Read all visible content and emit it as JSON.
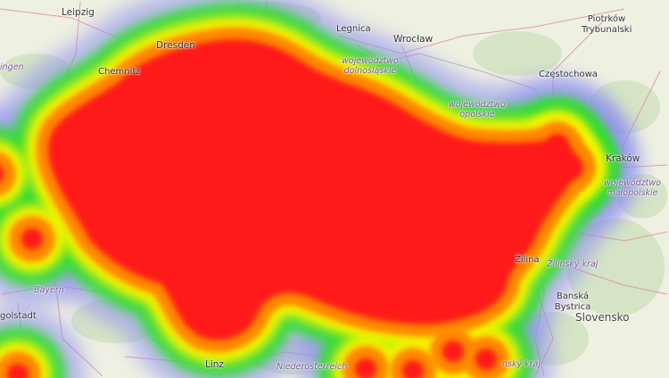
{
  "map": {
    "labels": {
      "leipzig": "Leipzig",
      "dresden": "Dresden",
      "chemnitz": "Chemnitz",
      "ingen": "ingen",
      "legnica": "Legnica",
      "wroclaw": "Wrocław",
      "piotrkow": "Piotrków Trybunalski",
      "czestochowa": "Częstochowa",
      "krakow": "Kraków",
      "dolnoslaskie": "województwo dolnośląskie",
      "opolskie": "województwo opolskie",
      "malopolskie": "województwo małopolskie",
      "zilina": "Žilina",
      "zilinsky": "Žilinský kraj",
      "banska": "Banská Bystrica",
      "slovensko": "Slovensko",
      "bayern": "Bayern",
      "ingolstadt": "golstadt",
      "linz": "Linz",
      "niederosterreich": "Niederösterreich",
      "nskykraj": "nský kraj"
    },
    "heatmap": {
      "colors": [
        "#8c8cf0",
        "#33dd33",
        "#f5f500",
        "#ff8800",
        "#ff1a1a"
      ]
    }
  }
}
